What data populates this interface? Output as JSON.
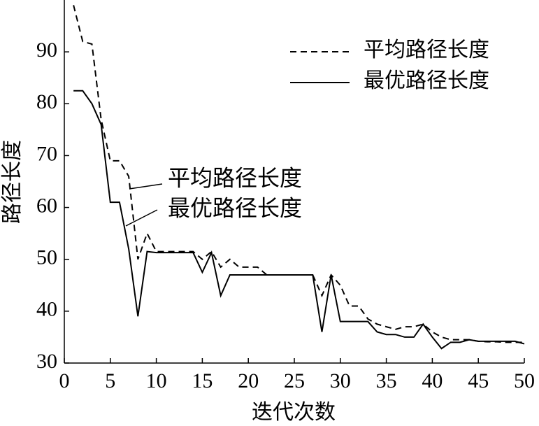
{
  "chart_data": {
    "type": "line",
    "x_label": "迭代次数",
    "y_label": "路径长度",
    "x": [
      1,
      2,
      3,
      4,
      5,
      6,
      7,
      8,
      9,
      10,
      11,
      12,
      13,
      14,
      15,
      16,
      17,
      18,
      19,
      20,
      21,
      22,
      23,
      24,
      25,
      26,
      27,
      28,
      29,
      30,
      31,
      32,
      33,
      34,
      35,
      36,
      37,
      38,
      39,
      40,
      41,
      42,
      43,
      44,
      45,
      46,
      47,
      48,
      49,
      50
    ],
    "series": [
      {
        "name": "平均路径长度",
        "color": "#000000",
        "style": "dashed",
        "values": [
          99,
          92,
          91.5,
          77,
          69,
          69,
          66,
          50,
          55,
          51.5,
          51.5,
          51.5,
          51.5,
          51.5,
          50,
          51.5,
          48.5,
          50,
          48.5,
          48.5,
          48.5,
          47,
          47,
          47,
          47,
          47,
          47,
          43,
          47,
          45,
          41,
          41,
          38.5,
          37.5,
          37,
          36.5,
          37,
          37,
          37.5,
          36,
          35,
          34.5,
          34.5,
          34.5,
          34.2,
          34.1,
          34.1,
          34,
          34,
          34
        ]
      },
      {
        "name": "最优路径长度",
        "color": "#000000",
        "style": "solid",
        "values": [
          82.5,
          82.5,
          80,
          76,
          61,
          61,
          52,
          39,
          51.5,
          51.3,
          51.3,
          51.3,
          51.3,
          51.3,
          47.5,
          51.3,
          43,
          47,
          47,
          47,
          47,
          47,
          47,
          47,
          47,
          47,
          47,
          36,
          47,
          38,
          38,
          38,
          38,
          36,
          35.5,
          35.5,
          35,
          35,
          37.5,
          35,
          32.8,
          34,
          34,
          34.5,
          34.2,
          34.2,
          34.2,
          34.2,
          34.2,
          33.7
        ]
      }
    ],
    "annotations": [
      "平均路径长度",
      "最优路径长度"
    ],
    "xlim": [
      0,
      50
    ],
    "xticks": [
      0,
      5,
      10,
      15,
      20,
      25,
      30,
      35,
      40,
      45,
      50
    ],
    "ylim": [
      30,
      100
    ],
    "yticks": [
      30,
      40,
      50,
      60,
      70,
      80,
      90
    ],
    "legend": "upper right",
    "grid": false
  }
}
